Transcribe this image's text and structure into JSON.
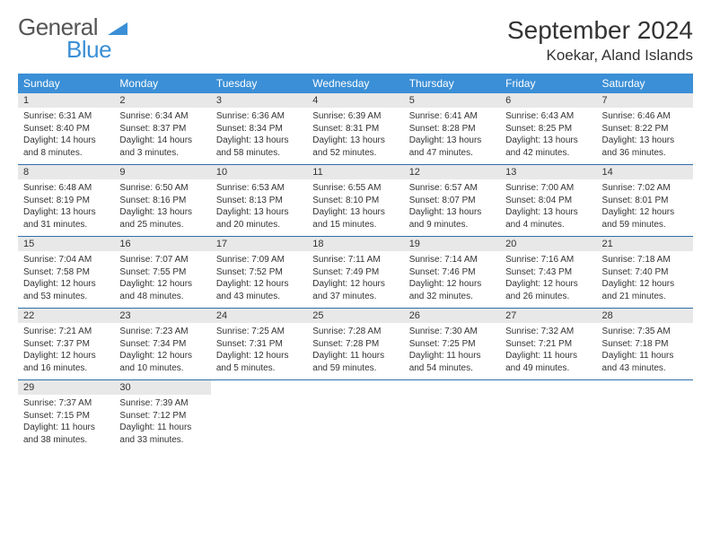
{
  "brand": {
    "word1": "General",
    "word2": "Blue",
    "logo_color": "#3b8fd6",
    "text_color": "#555555"
  },
  "title": {
    "month": "September 2024",
    "location": "Koekar, Aland Islands"
  },
  "colors": {
    "header_bg": "#3b8fd6",
    "header_fg": "#ffffff",
    "daynum_bg": "#e8e8e8",
    "row_border": "#2f6fa8",
    "body_text": "#333333"
  },
  "weekdays": [
    "Sunday",
    "Monday",
    "Tuesday",
    "Wednesday",
    "Thursday",
    "Friday",
    "Saturday"
  ],
  "weeks": [
    [
      {
        "n": "1",
        "sr": "Sunrise: 6:31 AM",
        "ss": "Sunset: 8:40 PM",
        "dl": "Daylight: 14 hours and 8 minutes."
      },
      {
        "n": "2",
        "sr": "Sunrise: 6:34 AM",
        "ss": "Sunset: 8:37 PM",
        "dl": "Daylight: 14 hours and 3 minutes."
      },
      {
        "n": "3",
        "sr": "Sunrise: 6:36 AM",
        "ss": "Sunset: 8:34 PM",
        "dl": "Daylight: 13 hours and 58 minutes."
      },
      {
        "n": "4",
        "sr": "Sunrise: 6:39 AM",
        "ss": "Sunset: 8:31 PM",
        "dl": "Daylight: 13 hours and 52 minutes."
      },
      {
        "n": "5",
        "sr": "Sunrise: 6:41 AM",
        "ss": "Sunset: 8:28 PM",
        "dl": "Daylight: 13 hours and 47 minutes."
      },
      {
        "n": "6",
        "sr": "Sunrise: 6:43 AM",
        "ss": "Sunset: 8:25 PM",
        "dl": "Daylight: 13 hours and 42 minutes."
      },
      {
        "n": "7",
        "sr": "Sunrise: 6:46 AM",
        "ss": "Sunset: 8:22 PM",
        "dl": "Daylight: 13 hours and 36 minutes."
      }
    ],
    [
      {
        "n": "8",
        "sr": "Sunrise: 6:48 AM",
        "ss": "Sunset: 8:19 PM",
        "dl": "Daylight: 13 hours and 31 minutes."
      },
      {
        "n": "9",
        "sr": "Sunrise: 6:50 AM",
        "ss": "Sunset: 8:16 PM",
        "dl": "Daylight: 13 hours and 25 minutes."
      },
      {
        "n": "10",
        "sr": "Sunrise: 6:53 AM",
        "ss": "Sunset: 8:13 PM",
        "dl": "Daylight: 13 hours and 20 minutes."
      },
      {
        "n": "11",
        "sr": "Sunrise: 6:55 AM",
        "ss": "Sunset: 8:10 PM",
        "dl": "Daylight: 13 hours and 15 minutes."
      },
      {
        "n": "12",
        "sr": "Sunrise: 6:57 AM",
        "ss": "Sunset: 8:07 PM",
        "dl": "Daylight: 13 hours and 9 minutes."
      },
      {
        "n": "13",
        "sr": "Sunrise: 7:00 AM",
        "ss": "Sunset: 8:04 PM",
        "dl": "Daylight: 13 hours and 4 minutes."
      },
      {
        "n": "14",
        "sr": "Sunrise: 7:02 AM",
        "ss": "Sunset: 8:01 PM",
        "dl": "Daylight: 12 hours and 59 minutes."
      }
    ],
    [
      {
        "n": "15",
        "sr": "Sunrise: 7:04 AM",
        "ss": "Sunset: 7:58 PM",
        "dl": "Daylight: 12 hours and 53 minutes."
      },
      {
        "n": "16",
        "sr": "Sunrise: 7:07 AM",
        "ss": "Sunset: 7:55 PM",
        "dl": "Daylight: 12 hours and 48 minutes."
      },
      {
        "n": "17",
        "sr": "Sunrise: 7:09 AM",
        "ss": "Sunset: 7:52 PM",
        "dl": "Daylight: 12 hours and 43 minutes."
      },
      {
        "n": "18",
        "sr": "Sunrise: 7:11 AM",
        "ss": "Sunset: 7:49 PM",
        "dl": "Daylight: 12 hours and 37 minutes."
      },
      {
        "n": "19",
        "sr": "Sunrise: 7:14 AM",
        "ss": "Sunset: 7:46 PM",
        "dl": "Daylight: 12 hours and 32 minutes."
      },
      {
        "n": "20",
        "sr": "Sunrise: 7:16 AM",
        "ss": "Sunset: 7:43 PM",
        "dl": "Daylight: 12 hours and 26 minutes."
      },
      {
        "n": "21",
        "sr": "Sunrise: 7:18 AM",
        "ss": "Sunset: 7:40 PM",
        "dl": "Daylight: 12 hours and 21 minutes."
      }
    ],
    [
      {
        "n": "22",
        "sr": "Sunrise: 7:21 AM",
        "ss": "Sunset: 7:37 PM",
        "dl": "Daylight: 12 hours and 16 minutes."
      },
      {
        "n": "23",
        "sr": "Sunrise: 7:23 AM",
        "ss": "Sunset: 7:34 PM",
        "dl": "Daylight: 12 hours and 10 minutes."
      },
      {
        "n": "24",
        "sr": "Sunrise: 7:25 AM",
        "ss": "Sunset: 7:31 PM",
        "dl": "Daylight: 12 hours and 5 minutes."
      },
      {
        "n": "25",
        "sr": "Sunrise: 7:28 AM",
        "ss": "Sunset: 7:28 PM",
        "dl": "Daylight: 11 hours and 59 minutes."
      },
      {
        "n": "26",
        "sr": "Sunrise: 7:30 AM",
        "ss": "Sunset: 7:25 PM",
        "dl": "Daylight: 11 hours and 54 minutes."
      },
      {
        "n": "27",
        "sr": "Sunrise: 7:32 AM",
        "ss": "Sunset: 7:21 PM",
        "dl": "Daylight: 11 hours and 49 minutes."
      },
      {
        "n": "28",
        "sr": "Sunrise: 7:35 AM",
        "ss": "Sunset: 7:18 PM",
        "dl": "Daylight: 11 hours and 43 minutes."
      }
    ],
    [
      {
        "n": "29",
        "sr": "Sunrise: 7:37 AM",
        "ss": "Sunset: 7:15 PM",
        "dl": "Daylight: 11 hours and 38 minutes."
      },
      {
        "n": "30",
        "sr": "Sunrise: 7:39 AM",
        "ss": "Sunset: 7:12 PM",
        "dl": "Daylight: 11 hours and 33 minutes."
      },
      {
        "empty": true
      },
      {
        "empty": true
      },
      {
        "empty": true
      },
      {
        "empty": true
      },
      {
        "empty": true
      }
    ]
  ]
}
